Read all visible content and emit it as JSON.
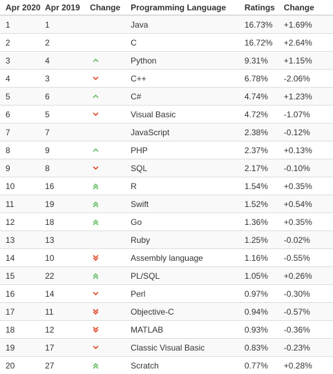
{
  "headers": [
    "Apr 2020",
    "Apr 2019",
    "Change",
    "Programming Language",
    "Ratings",
    "Change"
  ],
  "colors": {
    "up": "#6abf69",
    "down": "#e14a2b"
  },
  "rows": [
    {
      "apr2020": "1",
      "apr2019": "1",
      "trend": "none",
      "language": "Java",
      "rating": "16.73%",
      "change": "+1.69%"
    },
    {
      "apr2020": "2",
      "apr2019": "2",
      "trend": "none",
      "language": "C",
      "rating": "16.72%",
      "change": "+2.64%"
    },
    {
      "apr2020": "3",
      "apr2019": "4",
      "trend": "up",
      "language": "Python",
      "rating": "9.31%",
      "change": "+1.15%"
    },
    {
      "apr2020": "4",
      "apr2019": "3",
      "trend": "down",
      "language": "C++",
      "rating": "6.78%",
      "change": "-2.06%"
    },
    {
      "apr2020": "5",
      "apr2019": "6",
      "trend": "up",
      "language": "C#",
      "rating": "4.74%",
      "change": "+1.23%"
    },
    {
      "apr2020": "6",
      "apr2019": "5",
      "trend": "down",
      "language": "Visual Basic",
      "rating": "4.72%",
      "change": "-1.07%"
    },
    {
      "apr2020": "7",
      "apr2019": "7",
      "trend": "none",
      "language": "JavaScript",
      "rating": "2.38%",
      "change": "-0.12%"
    },
    {
      "apr2020": "8",
      "apr2019": "9",
      "trend": "up",
      "language": "PHP",
      "rating": "2.37%",
      "change": "+0.13%"
    },
    {
      "apr2020": "9",
      "apr2019": "8",
      "trend": "down",
      "language": "SQL",
      "rating": "2.17%",
      "change": "-0.10%"
    },
    {
      "apr2020": "10",
      "apr2019": "16",
      "trend": "up2",
      "language": "R",
      "rating": "1.54%",
      "change": "+0.35%"
    },
    {
      "apr2020": "11",
      "apr2019": "19",
      "trend": "up2",
      "language": "Swift",
      "rating": "1.52%",
      "change": "+0.54%"
    },
    {
      "apr2020": "12",
      "apr2019": "18",
      "trend": "up2",
      "language": "Go",
      "rating": "1.36%",
      "change": "+0.35%"
    },
    {
      "apr2020": "13",
      "apr2019": "13",
      "trend": "none",
      "language": "Ruby",
      "rating": "1.25%",
      "change": "-0.02%"
    },
    {
      "apr2020": "14",
      "apr2019": "10",
      "trend": "down2",
      "language": "Assembly language",
      "rating": "1.16%",
      "change": "-0.55%"
    },
    {
      "apr2020": "15",
      "apr2019": "22",
      "trend": "up2",
      "language": "PL/SQL",
      "rating": "1.05%",
      "change": "+0.26%"
    },
    {
      "apr2020": "16",
      "apr2019": "14",
      "trend": "down",
      "language": "Perl",
      "rating": "0.97%",
      "change": "-0.30%"
    },
    {
      "apr2020": "17",
      "apr2019": "11",
      "trend": "down2",
      "language": "Objective-C",
      "rating": "0.94%",
      "change": "-0.57%"
    },
    {
      "apr2020": "18",
      "apr2019": "12",
      "trend": "down2",
      "language": "MATLAB",
      "rating": "0.93%",
      "change": "-0.36%"
    },
    {
      "apr2020": "19",
      "apr2019": "17",
      "trend": "down",
      "language": "Classic Visual Basic",
      "rating": "0.83%",
      "change": "-0.23%"
    },
    {
      "apr2020": "20",
      "apr2019": "27",
      "trend": "up2",
      "language": "Scratch",
      "rating": "0.77%",
      "change": "+0.28%"
    }
  ]
}
